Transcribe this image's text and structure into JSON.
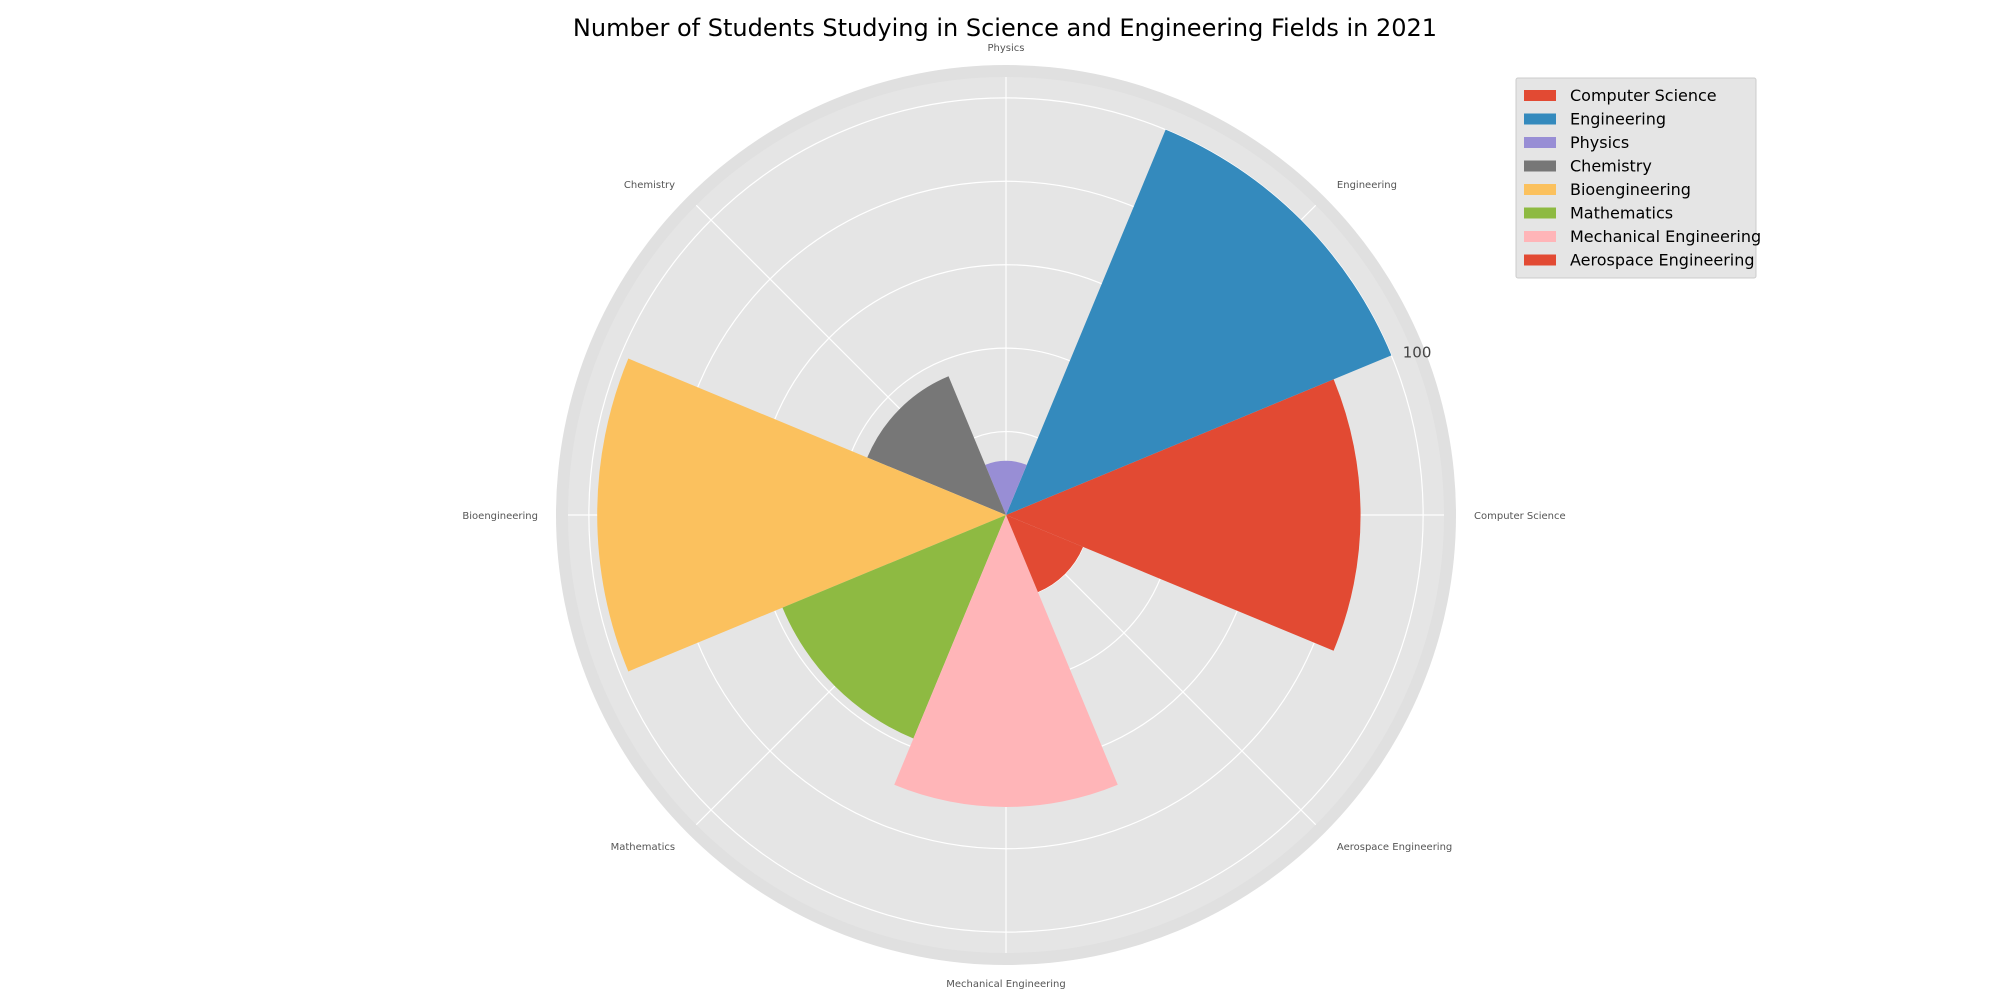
{
  "chart_data": {
    "type": "rose",
    "title": "Number of Students Studying in Science and Engineering Fields in 2021",
    "categories": [
      "Computer Science",
      "Engineering",
      "Physics",
      "Chemistry",
      "Bioengineering",
      "Mathematics",
      "Mechanical Engineering",
      "Aerospace Engineering"
    ],
    "values": [
      85,
      100,
      13,
      36,
      98,
      58,
      70,
      20
    ],
    "colors": [
      "#E24A33",
      "#348ABD",
      "#988ED5",
      "#777777",
      "#FBC15E",
      "#8EBA42",
      "#FFB5B8",
      "#E24A33"
    ],
    "axis_label_positions": [
      "Computer Science",
      "Engineering",
      "Physics",
      "Chemistry",
      "Bioengineering",
      "Mathematics",
      "Mechanical Engineering",
      "Aerospace Engineering"
    ],
    "radial_ticks": [
      20,
      40,
      60,
      80,
      100
    ],
    "radial_tick_labels_shown": [
      "100"
    ],
    "rlim": [
      0,
      105
    ],
    "grid": true,
    "legend": {
      "placement": "top-right",
      "entries": [
        "Computer Science",
        "Engineering",
        "Physics",
        "Chemistry",
        "Bioengineering",
        "Mathematics",
        "Mechanical Engineering",
        "Aerospace Engineering"
      ]
    },
    "background_color": "#E5E5E5"
  }
}
